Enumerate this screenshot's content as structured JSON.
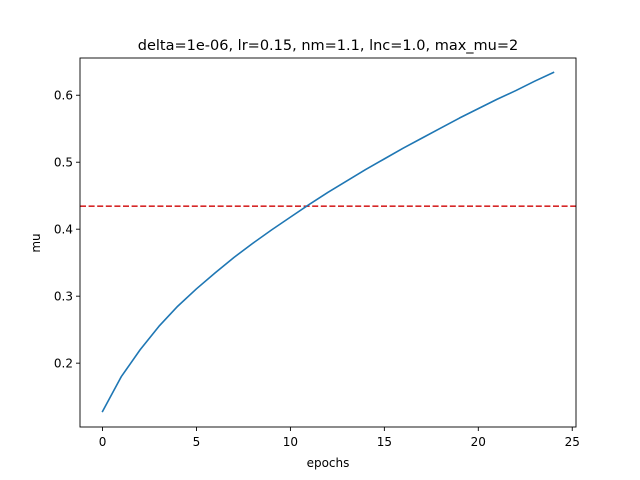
{
  "chart_data": {
    "type": "line",
    "title": "delta=1e-06, lr=0.15, nm=1.1, lnc=1.0, max_mu=2",
    "xlabel": "epochs",
    "ylabel": "mu",
    "xlim": [
      -1.2,
      25.2
    ],
    "ylim": [
      0.1047,
      0.6556
    ],
    "x_ticks": [
      0,
      5,
      10,
      15,
      20,
      25
    ],
    "y_ticks": [
      0.2,
      0.3,
      0.4,
      0.5,
      0.6
    ],
    "grid": false,
    "legend": "none",
    "series": [
      {
        "color": "#1f77b4",
        "x": [
          0,
          1,
          2,
          3,
          4,
          5,
          6,
          7,
          8,
          9,
          10,
          11,
          12,
          13,
          14,
          15,
          16,
          17,
          18,
          19,
          20,
          21,
          22,
          23,
          24
        ],
        "values": [
          0.128,
          0.18,
          0.22,
          0.255,
          0.285,
          0.311,
          0.335,
          0.358,
          0.379,
          0.399,
          0.418,
          0.437,
          0.455,
          0.472,
          0.489,
          0.505,
          0.521,
          0.536,
          0.551,
          0.566,
          0.58,
          0.594,
          0.607,
          0.621,
          0.634
        ]
      }
    ],
    "reference_lines": [
      {
        "orientation": "horizontal",
        "y": 0.4343,
        "color": "#d62728",
        "style": "dashed"
      }
    ]
  }
}
